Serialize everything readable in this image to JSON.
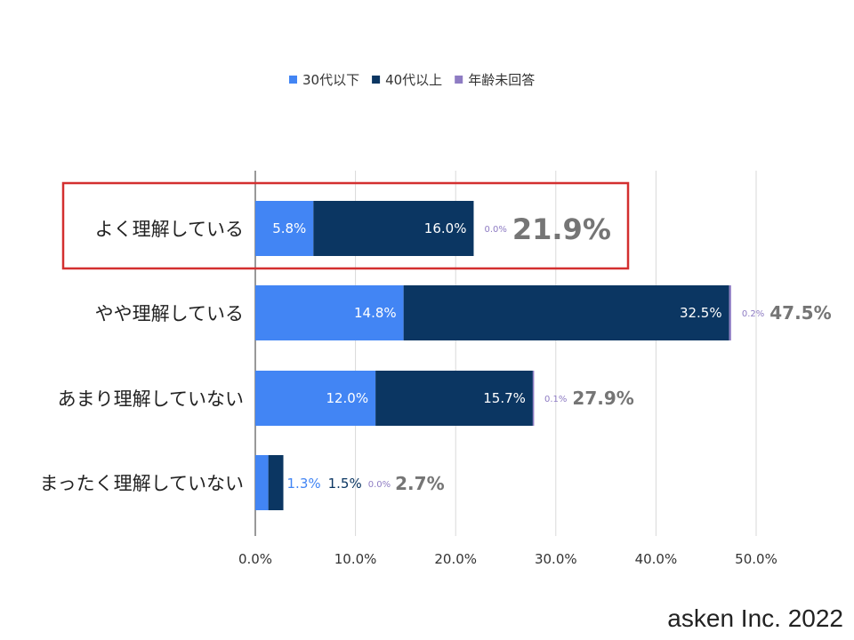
{
  "credit": "asken Inc. 2022",
  "chart_data": {
    "type": "bar",
    "orientation": "horizontal",
    "stacked": true,
    "categories": [
      "よく理解している",
      "やや理解している",
      "あまり理解していない",
      "まったく理解していない"
    ],
    "series": [
      {
        "name": "30代以下",
        "color": "#4285f4",
        "values": [
          5.8,
          14.8,
          12.0,
          1.3
        ],
        "labels": [
          "5.8%",
          "14.8%",
          "12.0%",
          "1.3%"
        ]
      },
      {
        "name": "40代以上",
        "color": "#0b3662",
        "values": [
          16.0,
          32.5,
          15.7,
          1.5
        ],
        "labels": [
          "16.0%",
          "32.5%",
          "15.7%",
          "1.5%"
        ]
      },
      {
        "name": "年齢未回答",
        "color": "#8e7cc3",
        "values": [
          0.0,
          0.2,
          0.1,
          0.0
        ],
        "labels": [
          "0.0%",
          "0.2%",
          "0.1%",
          "0.0%"
        ]
      }
    ],
    "totals": [
      "21.9%",
      "47.5%",
      "27.9%",
      "2.7%"
    ],
    "total_values": [
      21.9,
      47.5,
      27.9,
      2.7
    ],
    "xlim": [
      0,
      50
    ],
    "x_ticks": [
      0,
      10,
      20,
      30,
      40,
      50
    ],
    "x_tick_labels": [
      "0.0%",
      "10.0%",
      "20.0%",
      "30.0%",
      "40.0%",
      "50.0%"
    ],
    "legend_position": "top-center",
    "grid": true,
    "highlighted_category": "よく理解している",
    "highlight_color": "#d32f2f",
    "total_label_color": "#757575"
  }
}
